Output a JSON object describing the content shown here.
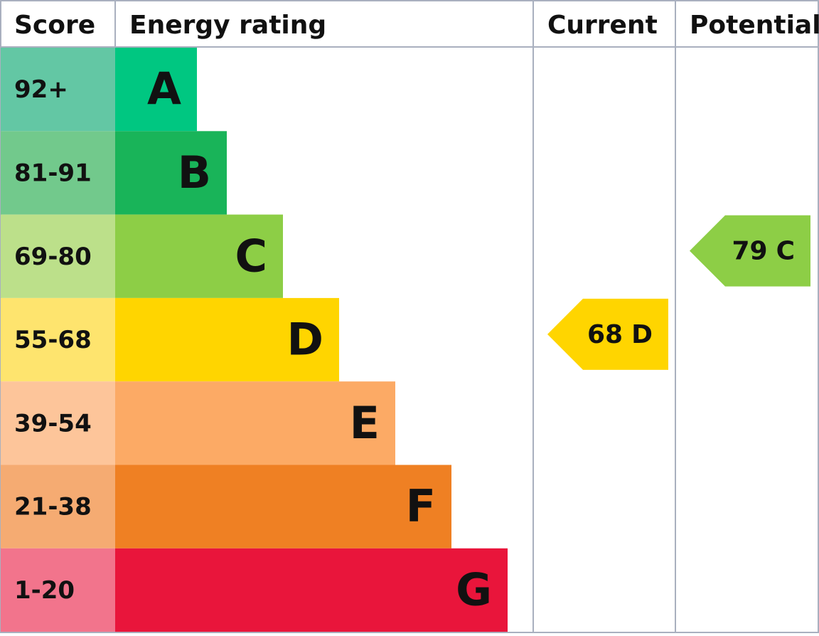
{
  "headers": [
    "Score",
    "Energy rating",
    "Current",
    "Potential"
  ],
  "bands": [
    {
      "score": "92+",
      "rating": "A",
      "score_color": "#63c7a4",
      "color": "#00c781"
    },
    {
      "score": "81-91",
      "rating": "B",
      "score_color": "#72c98c",
      "color": "#19b459"
    },
    {
      "score": "69-80",
      "rating": "C",
      "score_color": "#bce08a",
      "color": "#8dce46"
    },
    {
      "score": "55-68",
      "rating": "D",
      "score_color": "#fee46e",
      "color": "#ffd500"
    },
    {
      "score": "39-54",
      "rating": "E",
      "score_color": "#fdc59a",
      "color": "#fcaa65"
    },
    {
      "score": "21-38",
      "rating": "F",
      "score_color": "#f5ab72",
      "color": "#ef8023"
    },
    {
      "score": "1-20",
      "rating": "G",
      "score_color": "#f2748c",
      "color": "#e9153b"
    }
  ],
  "current": {
    "score": 68,
    "rating": "D"
  },
  "potential": {
    "score": 79,
    "rating": "C"
  }
}
